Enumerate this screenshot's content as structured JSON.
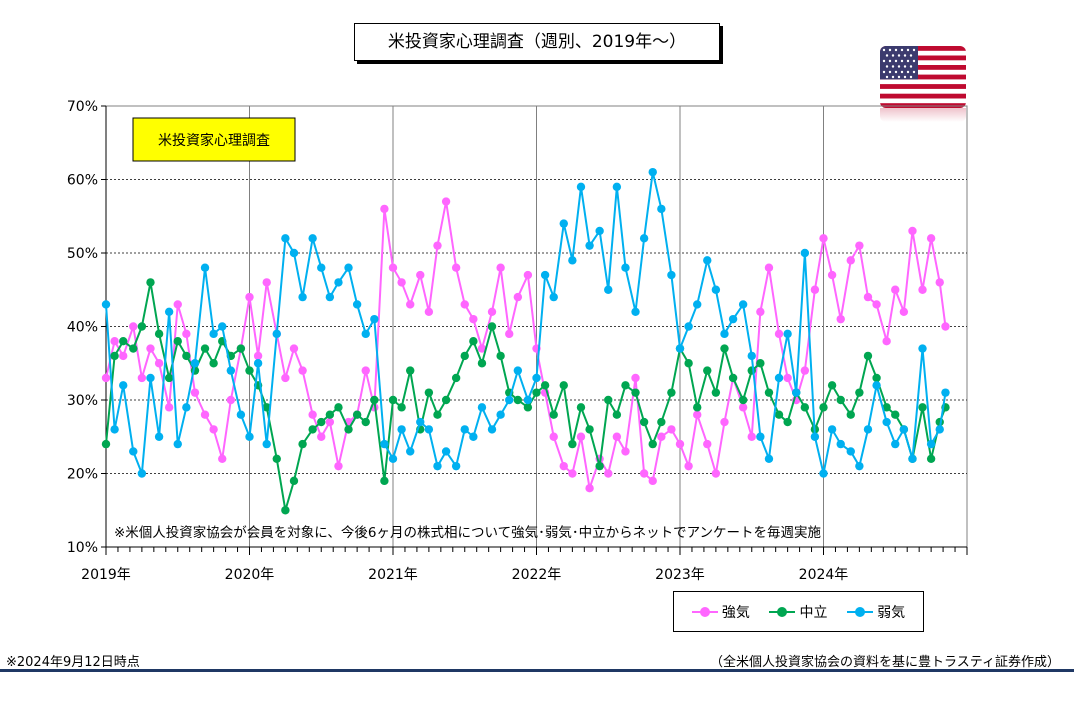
{
  "header": {
    "title": "米投資家心理調査（週別、2019年～）"
  },
  "footer": {
    "as_of": "※2024年9月12日時点",
    "source": "（全米個人投資家協会の資料を基に豊トラスティ証券作成）"
  },
  "icons": {
    "flag": "us-flag-icon"
  },
  "colors": {
    "bullish": "#ff66ff",
    "neutral": "#00a651",
    "bearish": "#00b0f0",
    "label_box": "#ffff00"
  },
  "chart_data": {
    "type": "line",
    "inner_label": "米投資家心理調査",
    "note": "※米個人投資家協会が会員を対象に、今後6ヶ月の株式相について強気･弱気･中立からネットでアンケートを毎週実施",
    "y_ticks": [
      "10%",
      "20%",
      "30%",
      "40%",
      "50%",
      "60%",
      "70%"
    ],
    "x_ticks": [
      "2019年",
      "2020年",
      "2021年",
      "2022年",
      "2023年",
      "2024年"
    ],
    "ylim": [
      10,
      70
    ],
    "xlim": [
      2019.0,
      2025.0
    ],
    "grid": true,
    "legend_position": "bottom-right",
    "series": [
      {
        "name": "強気",
        "color": "#ff66ff",
        "values": [
          [
            2019.0,
            33
          ],
          [
            2019.06,
            38
          ],
          [
            2019.12,
            36
          ],
          [
            2019.19,
            40
          ],
          [
            2019.25,
            33
          ],
          [
            2019.31,
            37
          ],
          [
            2019.37,
            35
          ],
          [
            2019.44,
            29
          ],
          [
            2019.5,
            43
          ],
          [
            2019.56,
            39
          ],
          [
            2019.62,
            31
          ],
          [
            2019.69,
            28
          ],
          [
            2019.75,
            26
          ],
          [
            2019.81,
            22
          ],
          [
            2019.87,
            30
          ],
          [
            2019.94,
            37
          ],
          [
            2020.0,
            44
          ],
          [
            2020.06,
            36
          ],
          [
            2020.12,
            46
          ],
          [
            2020.19,
            39
          ],
          [
            2020.25,
            33
          ],
          [
            2020.31,
            37
          ],
          [
            2020.37,
            34
          ],
          [
            2020.44,
            28
          ],
          [
            2020.5,
            25
          ],
          [
            2020.56,
            27
          ],
          [
            2020.62,
            21
          ],
          [
            2020.69,
            27
          ],
          [
            2020.75,
            28
          ],
          [
            2020.81,
            34
          ],
          [
            2020.87,
            29
          ],
          [
            2020.94,
            56
          ],
          [
            2021.0,
            48
          ],
          [
            2021.06,
            46
          ],
          [
            2021.12,
            43
          ],
          [
            2021.19,
            47
          ],
          [
            2021.25,
            42
          ],
          [
            2021.31,
            51
          ],
          [
            2021.37,
            57
          ],
          [
            2021.44,
            48
          ],
          [
            2021.5,
            43
          ],
          [
            2021.56,
            41
          ],
          [
            2021.62,
            37
          ],
          [
            2021.69,
            42
          ],
          [
            2021.75,
            48
          ],
          [
            2021.81,
            39
          ],
          [
            2021.87,
            44
          ],
          [
            2021.94,
            47
          ],
          [
            2022.0,
            37
          ],
          [
            2022.06,
            31
          ],
          [
            2022.12,
            25
          ],
          [
            2022.19,
            21
          ],
          [
            2022.25,
            20
          ],
          [
            2022.31,
            25
          ],
          [
            2022.37,
            18
          ],
          [
            2022.44,
            22
          ],
          [
            2022.5,
            20
          ],
          [
            2022.56,
            25
          ],
          [
            2022.62,
            23
          ],
          [
            2022.69,
            33
          ],
          [
            2022.75,
            20
          ],
          [
            2022.81,
            19
          ],
          [
            2022.87,
            25
          ],
          [
            2022.94,
            26
          ],
          [
            2023.0,
            24
          ],
          [
            2023.06,
            21
          ],
          [
            2023.12,
            28
          ],
          [
            2023.19,
            24
          ],
          [
            2023.25,
            20
          ],
          [
            2023.31,
            27
          ],
          [
            2023.37,
            33
          ],
          [
            2023.44,
            29
          ],
          [
            2023.5,
            25
          ],
          [
            2023.56,
            42
          ],
          [
            2023.62,
            48
          ],
          [
            2023.69,
            39
          ],
          [
            2023.75,
            33
          ],
          [
            2023.81,
            30
          ],
          [
            2023.87,
            34
          ],
          [
            2023.94,
            45
          ],
          [
            2024.0,
            52
          ],
          [
            2024.06,
            47
          ],
          [
            2024.12,
            41
          ],
          [
            2024.19,
            49
          ],
          [
            2024.25,
            51
          ],
          [
            2024.31,
            44
          ],
          [
            2024.37,
            43
          ],
          [
            2024.44,
            38
          ],
          [
            2024.5,
            45
          ],
          [
            2024.56,
            42
          ],
          [
            2024.62,
            53
          ],
          [
            2024.69,
            45
          ],
          [
            2024.75,
            52
          ],
          [
            2024.81,
            46
          ],
          [
            2024.85,
            40
          ]
        ]
      },
      {
        "name": "中立",
        "color": "#00a651",
        "values": [
          [
            2019.0,
            24
          ],
          [
            2019.06,
            36
          ],
          [
            2019.12,
            38
          ],
          [
            2019.19,
            37
          ],
          [
            2019.25,
            40
          ],
          [
            2019.31,
            46
          ],
          [
            2019.37,
            39
          ],
          [
            2019.44,
            33
          ],
          [
            2019.5,
            38
          ],
          [
            2019.56,
            36
          ],
          [
            2019.62,
            34
          ],
          [
            2019.69,
            37
          ],
          [
            2019.75,
            35
          ],
          [
            2019.81,
            38
          ],
          [
            2019.87,
            36
          ],
          [
            2019.94,
            37
          ],
          [
            2020.0,
            34
          ],
          [
            2020.06,
            32
          ],
          [
            2020.12,
            29
          ],
          [
            2020.19,
            22
          ],
          [
            2020.25,
            15
          ],
          [
            2020.31,
            19
          ],
          [
            2020.37,
            24
          ],
          [
            2020.44,
            26
          ],
          [
            2020.5,
            27
          ],
          [
            2020.56,
            28
          ],
          [
            2020.62,
            29
          ],
          [
            2020.69,
            26
          ],
          [
            2020.75,
            28
          ],
          [
            2020.81,
            27
          ],
          [
            2020.87,
            30
          ],
          [
            2020.94,
            19
          ],
          [
            2021.0,
            30
          ],
          [
            2021.06,
            29
          ],
          [
            2021.12,
            34
          ],
          [
            2021.19,
            26
          ],
          [
            2021.25,
            31
          ],
          [
            2021.31,
            28
          ],
          [
            2021.37,
            30
          ],
          [
            2021.44,
            33
          ],
          [
            2021.5,
            36
          ],
          [
            2021.56,
            38
          ],
          [
            2021.62,
            35
          ],
          [
            2021.69,
            40
          ],
          [
            2021.75,
            36
          ],
          [
            2021.81,
            31
          ],
          [
            2021.87,
            30
          ],
          [
            2021.94,
            29
          ],
          [
            2022.0,
            31
          ],
          [
            2022.06,
            32
          ],
          [
            2022.12,
            28
          ],
          [
            2022.19,
            32
          ],
          [
            2022.25,
            24
          ],
          [
            2022.31,
            29
          ],
          [
            2022.37,
            26
          ],
          [
            2022.44,
            21
          ],
          [
            2022.5,
            30
          ],
          [
            2022.56,
            28
          ],
          [
            2022.62,
            32
          ],
          [
            2022.69,
            31
          ],
          [
            2022.75,
            27
          ],
          [
            2022.81,
            24
          ],
          [
            2022.87,
            27
          ],
          [
            2022.94,
            31
          ],
          [
            2023.0,
            37
          ],
          [
            2023.06,
            35
          ],
          [
            2023.12,
            29
          ],
          [
            2023.19,
            34
          ],
          [
            2023.25,
            31
          ],
          [
            2023.31,
            37
          ],
          [
            2023.37,
            33
          ],
          [
            2023.44,
            30
          ],
          [
            2023.5,
            34
          ],
          [
            2023.56,
            35
          ],
          [
            2023.62,
            31
          ],
          [
            2023.69,
            28
          ],
          [
            2023.75,
            27
          ],
          [
            2023.81,
            31
          ],
          [
            2023.87,
            29
          ],
          [
            2023.94,
            26
          ],
          [
            2024.0,
            29
          ],
          [
            2024.06,
            32
          ],
          [
            2024.12,
            30
          ],
          [
            2024.19,
            28
          ],
          [
            2024.25,
            31
          ],
          [
            2024.31,
            36
          ],
          [
            2024.37,
            33
          ],
          [
            2024.44,
            29
          ],
          [
            2024.5,
            28
          ],
          [
            2024.56,
            26
          ],
          [
            2024.62,
            22
          ],
          [
            2024.69,
            29
          ],
          [
            2024.75,
            22
          ],
          [
            2024.81,
            27
          ],
          [
            2024.85,
            29
          ]
        ]
      },
      {
        "name": "弱気",
        "color": "#00b0f0",
        "values": [
          [
            2019.0,
            43
          ],
          [
            2019.06,
            26
          ],
          [
            2019.12,
            32
          ],
          [
            2019.19,
            23
          ],
          [
            2019.25,
            20
          ],
          [
            2019.31,
            33
          ],
          [
            2019.37,
            25
          ],
          [
            2019.44,
            42
          ],
          [
            2019.5,
            24
          ],
          [
            2019.56,
            29
          ],
          [
            2019.62,
            35
          ],
          [
            2019.69,
            48
          ],
          [
            2019.75,
            39
          ],
          [
            2019.81,
            40
          ],
          [
            2019.87,
            34
          ],
          [
            2019.94,
            28
          ],
          [
            2020.0,
            25
          ],
          [
            2020.06,
            35
          ],
          [
            2020.12,
            24
          ],
          [
            2020.19,
            39
          ],
          [
            2020.25,
            52
          ],
          [
            2020.31,
            50
          ],
          [
            2020.37,
            44
          ],
          [
            2020.44,
            52
          ],
          [
            2020.5,
            48
          ],
          [
            2020.56,
            44
          ],
          [
            2020.62,
            46
          ],
          [
            2020.69,
            48
          ],
          [
            2020.75,
            43
          ],
          [
            2020.81,
            39
          ],
          [
            2020.87,
            41
          ],
          [
            2020.94,
            24
          ],
          [
            2021.0,
            22
          ],
          [
            2021.06,
            26
          ],
          [
            2021.12,
            23
          ],
          [
            2021.19,
            27
          ],
          [
            2021.25,
            26
          ],
          [
            2021.31,
            21
          ],
          [
            2021.37,
            23
          ],
          [
            2021.44,
            21
          ],
          [
            2021.5,
            26
          ],
          [
            2021.56,
            25
          ],
          [
            2021.62,
            29
          ],
          [
            2021.69,
            26
          ],
          [
            2021.75,
            28
          ],
          [
            2021.81,
            30
          ],
          [
            2021.87,
            34
          ],
          [
            2021.94,
            30
          ],
          [
            2022.0,
            33
          ],
          [
            2022.06,
            47
          ],
          [
            2022.12,
            44
          ],
          [
            2022.19,
            54
          ],
          [
            2022.25,
            49
          ],
          [
            2022.31,
            59
          ],
          [
            2022.37,
            51
          ],
          [
            2022.44,
            53
          ],
          [
            2022.5,
            45
          ],
          [
            2022.56,
            59
          ],
          [
            2022.62,
            48
          ],
          [
            2022.69,
            42
          ],
          [
            2022.75,
            52
          ],
          [
            2022.81,
            61
          ],
          [
            2022.87,
            56
          ],
          [
            2022.94,
            47
          ],
          [
            2023.0,
            37
          ],
          [
            2023.06,
            40
          ],
          [
            2023.12,
            43
          ],
          [
            2023.19,
            49
          ],
          [
            2023.25,
            45
          ],
          [
            2023.31,
            39
          ],
          [
            2023.37,
            41
          ],
          [
            2023.44,
            43
          ],
          [
            2023.5,
            36
          ],
          [
            2023.56,
            25
          ],
          [
            2023.62,
            22
          ],
          [
            2023.69,
            33
          ],
          [
            2023.75,
            39
          ],
          [
            2023.81,
            31
          ],
          [
            2023.87,
            50
          ],
          [
            2023.94,
            25
          ],
          [
            2024.0,
            20
          ],
          [
            2024.06,
            26
          ],
          [
            2024.12,
            24
          ],
          [
            2024.19,
            23
          ],
          [
            2024.25,
            21
          ],
          [
            2024.31,
            26
          ],
          [
            2024.37,
            32
          ],
          [
            2024.44,
            27
          ],
          [
            2024.5,
            24
          ],
          [
            2024.56,
            26
          ],
          [
            2024.62,
            22
          ],
          [
            2024.69,
            37
          ],
          [
            2024.75,
            24
          ],
          [
            2024.81,
            26
          ],
          [
            2024.85,
            31
          ]
        ]
      }
    ]
  }
}
